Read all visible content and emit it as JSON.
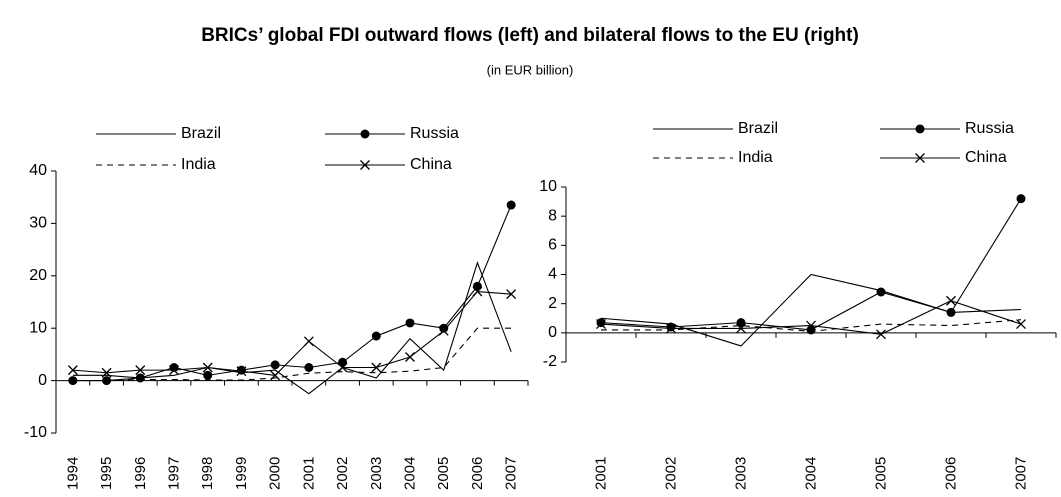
{
  "title": "BRICs’ global FDI outward flows (left) and bilateral flows to the EU (right)",
  "subtitle": "(in EUR billion)",
  "chart_data": [
    {
      "type": "line",
      "categories": [
        "1994",
        "1995",
        "1996",
        "1997",
        "1998",
        "1999",
        "2000",
        "2001",
        "2002",
        "2003",
        "2004",
        "2005",
        "2006",
        "2007"
      ],
      "ylim": [
        -10,
        40
      ],
      "yticks": [
        -10,
        0,
        10,
        20,
        30,
        40
      ],
      "legend": "top",
      "series": [
        {
          "name": "Brazil",
          "color": "#000000",
          "dash": "solid",
          "marker": "none",
          "values": [
            1,
            1,
            0.5,
            1,
            2.5,
            1.5,
            2,
            -2.5,
            2.5,
            0.5,
            8,
            2,
            22.5,
            5.5
          ]
        },
        {
          "name": "Russia",
          "color": "#000000",
          "dash": "solid",
          "marker": "circle",
          "values": [
            0,
            0,
            0.5,
            2.5,
            1,
            2,
            3,
            2.5,
            3.5,
            8.5,
            11,
            10,
            18,
            33.5
          ]
        },
        {
          "name": "India",
          "color": "#000000",
          "dash": "dashed",
          "marker": "none",
          "values": [
            0,
            0,
            0.2,
            0.2,
            0.1,
            0.1,
            0.5,
            1.4,
            1.7,
            1.5,
            1.8,
            2.5,
            10,
            10
          ]
        },
        {
          "name": "China",
          "color": "#000000",
          "dash": "solid",
          "marker": "x",
          "values": [
            2,
            1.5,
            2,
            2,
            2.5,
            1.8,
            1,
            7.5,
            2.5,
            2.5,
            4.5,
            9.5,
            17,
            16.5
          ]
        }
      ]
    },
    {
      "type": "line",
      "categories": [
        "2001",
        "2002",
        "2003",
        "2004",
        "2005",
        "2006",
        "2007"
      ],
      "ylim": [
        -2,
        10
      ],
      "yticks": [
        -2,
        0,
        2,
        4,
        6,
        8,
        10
      ],
      "legend": "top",
      "series": [
        {
          "name": "Brazil",
          "color": "#000000",
          "dash": "solid",
          "marker": "none",
          "values": [
            1.0,
            0.6,
            -0.9,
            4.0,
            2.9,
            1.4,
            1.6
          ]
        },
        {
          "name": "Russia",
          "color": "#000000",
          "dash": "solid",
          "marker": "circle",
          "values": [
            0.7,
            0.4,
            0.7,
            0.2,
            2.8,
            1.4,
            9.2
          ]
        },
        {
          "name": "India",
          "color": "#000000",
          "dash": "dashed",
          "marker": "none",
          "values": [
            0.2,
            0.2,
            0.5,
            0.1,
            0.6,
            0.5,
            0.9
          ]
        },
        {
          "name": "China",
          "color": "#000000",
          "dash": "solid",
          "marker": "x",
          "values": [
            0.6,
            0.3,
            0.3,
            0.5,
            -0.1,
            2.2,
            0.6
          ]
        }
      ]
    }
  ]
}
